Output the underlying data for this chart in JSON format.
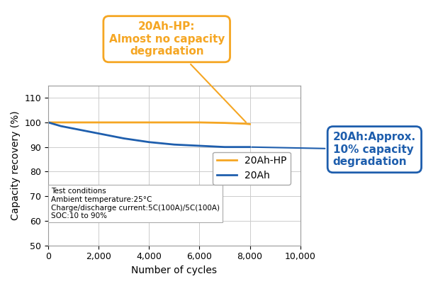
{
  "hp_x": [
    0,
    100,
    500,
    1000,
    2000,
    3000,
    4000,
    5000,
    6000,
    7000,
    7800,
    8000
  ],
  "hp_y": [
    100,
    100,
    100,
    100,
    100,
    100,
    100,
    100,
    100,
    99.8,
    99.5,
    99.3
  ],
  "blue_x": [
    0,
    500,
    1000,
    2000,
    3000,
    4000,
    5000,
    6000,
    7000,
    8000
  ],
  "blue_y": [
    100,
    98.5,
    97.5,
    95.5,
    93.5,
    92.0,
    91.0,
    90.5,
    90.0,
    90.0
  ],
  "orange_color": "#F5A623",
  "blue_color": "#1E5EAD",
  "xlim": [
    0,
    10000
  ],
  "ylim": [
    50,
    115
  ],
  "yticks": [
    50,
    60,
    70,
    80,
    90,
    100,
    110
  ],
  "xticks": [
    0,
    2000,
    4000,
    6000,
    8000,
    10000
  ],
  "xtick_labels": [
    "0",
    "2,000",
    "4,000",
    "6,000",
    "8,000",
    "10,000"
  ],
  "xlabel": "Number of cycles",
  "ylabel": "Capacity recovery (%)",
  "annotation_hp_text": "20Ah-HP:\nAlmost no capacity\ndegradation",
  "annotation_blue_text": "20Ah:Approx.\n10% capacity\ndegradation",
  "test_conditions": "Test conditions\nAmbient temperature:25°C\nCharge/discharge current:5C(100A)/5C(100A)\nSOC:10 to 90%",
  "legend_hp_label": "20Ah-HP",
  "legend_blue_label": "20Ah",
  "bg_color": "#FFFFFF",
  "plot_bg_color": "#FFFFFF",
  "grid_color": "#CCCCCC"
}
